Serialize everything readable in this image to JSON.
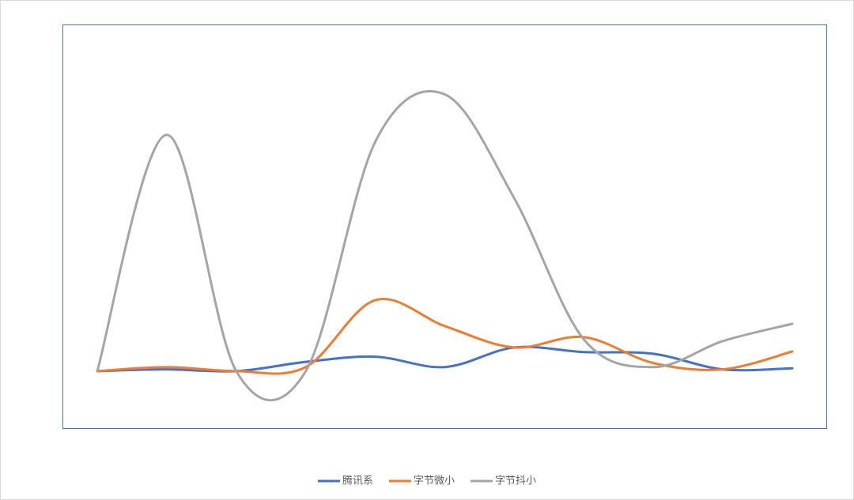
{
  "chart_data": {
    "type": "line",
    "categories": [
      null,
      null,
      null,
      null,
      null,
      null,
      null,
      null,
      null,
      null,
      null
    ],
    "ylim": [
      -1,
      6
    ],
    "smooth": true,
    "legend": "bottom",
    "series": [
      {
        "name": "腾讯系",
        "color": "#4472c4",
        "values": [
          0,
          0.03,
          0,
          0.16,
          0.25,
          0.07,
          0.41,
          0.33,
          0.3,
          0.03,
          0.05
        ]
      },
      {
        "name": "字节微小",
        "color": "#ed7d31",
        "values": [
          0,
          0.07,
          0,
          0.07,
          1.23,
          0.78,
          0.41,
          0.59,
          0.14,
          0.03,
          0.34
        ]
      },
      {
        "name": "字节抖小",
        "color": "#a5a5a5",
        "values": [
          0,
          4.09,
          0,
          0,
          3.97,
          4.79,
          2.99,
          0.55,
          0.07,
          0.52,
          0.82
        ]
      }
    ]
  }
}
